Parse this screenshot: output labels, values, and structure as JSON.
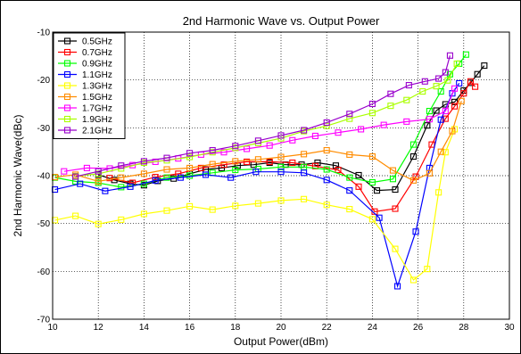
{
  "chart_data": {
    "type": "line",
    "title": "2nd Harmonic Wave vs. Output Power",
    "xlabel": "Output Power(dBm)",
    "ylabel": "2nd Harmonic Wave(dBc)",
    "xlim": [
      10,
      30
    ],
    "ylim": [
      -70,
      -10
    ],
    "xticks": [
      10,
      12,
      14,
      16,
      18,
      20,
      22,
      24,
      26,
      28,
      30
    ],
    "yticks": [
      -70,
      -60,
      -50,
      -40,
      -30,
      -20,
      -10
    ],
    "grid": true,
    "legend_position": "top-left",
    "series": [
      {
        "name": "0.5GHz",
        "color": "#000000",
        "x": [
          12.0,
          12.7,
          13.4,
          14.0,
          14.6,
          15.3,
          16.0,
          16.7,
          17.4,
          18.1,
          18.8,
          19.5,
          20.2,
          20.9,
          21.6,
          22.4,
          23.4,
          24.2,
          25.0,
          25.8,
          26.4,
          26.8,
          27.2,
          27.6,
          28.0,
          28.3,
          28.6,
          28.9
        ],
        "y": [
          -39.8,
          -40.9,
          -41.7,
          -42.0,
          -41.1,
          -40.6,
          -39.6,
          -38.7,
          -38.4,
          -37.9,
          -37.7,
          -37.3,
          -37.7,
          -37.7,
          -37.3,
          -37.9,
          -39.9,
          -43.1,
          -42.9,
          -36.0,
          -29.5,
          -26.4,
          -25.1,
          -24.6,
          -22.2,
          -20.6,
          -18.8,
          -17.0
        ]
      },
      {
        "name": "0.7GHz",
        "color": "#ff0000",
        "x": [
          12.5,
          13.5,
          14.5,
          15.5,
          16.5,
          17.5,
          18.5,
          19.5,
          20.5,
          21.5,
          22.5,
          23.4,
          24.1,
          25.0,
          25.9,
          26.6,
          27.2,
          27.6,
          28.0,
          28.3,
          28.5
        ],
        "y": [
          -40.5,
          -41.5,
          -40.3,
          -39.6,
          -38.4,
          -37.7,
          -37.1,
          -37.1,
          -37.3,
          -38.0,
          -38.8,
          -42.3,
          -47.5,
          -46.9,
          -40.2,
          -33.5,
          -28.1,
          -25.5,
          -22.8,
          -20.3,
          -21.4
        ]
      },
      {
        "name": "0.9GHz",
        "color": "#00ff00",
        "x": [
          10.1,
          11.0,
          12.0,
          13.0,
          14.0,
          15.0,
          16.0,
          17.0,
          18.0,
          19.0,
          20.0,
          21.0,
          22.0,
          23.0,
          24.0,
          24.9,
          25.8,
          26.5,
          27.0,
          27.4,
          27.8,
          28.1
        ],
        "y": [
          -40.4,
          -41.2,
          -41.5,
          -42.4,
          -41.7,
          -40.4,
          -40.0,
          -39.4,
          -38.8,
          -38.6,
          -38.2,
          -38.2,
          -38.7,
          -40.4,
          -41.4,
          -40.7,
          -33.5,
          -26.5,
          -22.4,
          -18.8,
          -16.6,
          -14.7
        ]
      },
      {
        "name": "1.1GHz",
        "color": "#0000ff",
        "x": [
          10.1,
          11.2,
          12.3,
          13.4,
          14.5,
          15.6,
          16.7,
          17.8,
          18.9,
          20.0,
          21.0,
          22.0,
          23.0,
          24.3,
          25.1,
          25.9,
          26.5,
          27.0,
          27.5,
          27.8
        ],
        "y": [
          -42.9,
          -41.7,
          -43.2,
          -42.3,
          -41.0,
          -40.4,
          -39.8,
          -40.4,
          -39.2,
          -39.2,
          -39.4,
          -40.9,
          -43.1,
          -48.8,
          -63.1,
          -51.7,
          -38.4,
          -28.3,
          -22.8,
          -20.7
        ]
      },
      {
        "name": "1.3GHz",
        "color": "#ffff00",
        "x": [
          10.1,
          11.0,
          12.0,
          13.0,
          14.0,
          15.0,
          16.0,
          17.0,
          18.0,
          19.0,
          20.0,
          21.0,
          22.0,
          23.0,
          24.0,
          25.0,
          25.8,
          26.4,
          26.9,
          27.2,
          27.6
        ],
        "y": [
          -49.3,
          -48.4,
          -50.1,
          -49.2,
          -48.0,
          -47.3,
          -46.4,
          -47.1,
          -46.3,
          -45.8,
          -45.2,
          -44.9,
          -46.1,
          -47.0,
          -49.1,
          -55.3,
          -61.8,
          -59.5,
          -43.5,
          -35.1,
          -30.3
        ]
      },
      {
        "name": "1.5GHz",
        "color": "#ff8c00",
        "x": [
          10.1,
          11.0,
          12.0,
          13.0,
          14.0,
          15.0,
          16.0,
          17.0,
          18.0,
          19.0,
          20.0,
          21.0,
          22.0,
          23.0,
          24.0,
          24.9,
          25.8,
          26.5,
          27.0,
          27.5,
          27.9
        ],
        "y": [
          -40.3,
          -39.8,
          -41.2,
          -40.4,
          -39.6,
          -38.7,
          -38.4,
          -37.6,
          -37.0,
          -36.6,
          -36.1,
          -35.5,
          -34.7,
          -35.6,
          -36.0,
          -38.9,
          -41.0,
          -39.5,
          -35.0,
          -30.7,
          -24.4
        ]
      },
      {
        "name": "1.7GHz",
        "color": "#ff00ff",
        "x": [
          10.5,
          11.5,
          12.5,
          13.5,
          14.5,
          15.5,
          16.5,
          17.5,
          18.5,
          19.5,
          20.5,
          21.5,
          22.5,
          23.5,
          24.5,
          25.5,
          26.5,
          27.2,
          27.6
        ],
        "y": [
          -39.1,
          -38.4,
          -38.5,
          -37.8,
          -37.1,
          -36.4,
          -35.6,
          -35.1,
          -34.4,
          -33.7,
          -32.6,
          -31.7,
          -31.0,
          -30.3,
          -29.4,
          -28.7,
          -28.2,
          -26.5,
          -21.8
        ]
      },
      {
        "name": "1.9GHz",
        "color": "#aaff00",
        "x": [
          11.0,
          12.0,
          13.0,
          14.0,
          15.0,
          16.0,
          17.0,
          18.0,
          19.0,
          20.0,
          21.0,
          22.0,
          23.0,
          24.0,
          24.8,
          25.5,
          26.2,
          26.8,
          27.3,
          27.7
        ],
        "y": [
          -40.1,
          -39.6,
          -38.5,
          -37.3,
          -36.8,
          -36.1,
          -35.1,
          -34.2,
          -33.2,
          -32.2,
          -30.7,
          -29.6,
          -28.1,
          -26.9,
          -25.4,
          -24.2,
          -22.4,
          -21.3,
          -20.1,
          -16.6
        ]
      },
      {
        "name": "2.1GHz",
        "color": "#9900cc",
        "x": [
          11.0,
          12.0,
          13.0,
          14.0,
          15.0,
          16.0,
          17.0,
          18.0,
          19.0,
          20.0,
          21.0,
          22.0,
          23.0,
          24.0,
          24.8,
          25.6,
          26.3,
          26.9,
          27.2,
          27.4
        ],
        "y": [
          -40.2,
          -39.1,
          -37.9,
          -37.0,
          -36.3,
          -35.3,
          -34.7,
          -33.8,
          -32.7,
          -31.6,
          -30.5,
          -28.9,
          -27.1,
          -25.0,
          -22.9,
          -21.1,
          -20.3,
          -19.7,
          -18.4,
          -14.9
        ]
      }
    ]
  }
}
